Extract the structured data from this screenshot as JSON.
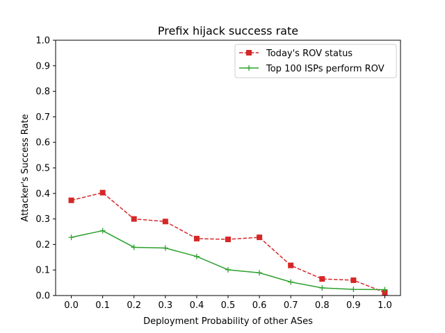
{
  "chart_data": {
    "type": "line",
    "title": "Prefix hijack success rate",
    "xlabel": "Deployment Probability of other ASes",
    "ylabel": "Attacker's Success Rate",
    "x": [
      0.0,
      0.1,
      0.2,
      0.3,
      0.4,
      0.5,
      0.6,
      0.7,
      0.8,
      0.9,
      1.0
    ],
    "xticks": [
      "0.0",
      "0.1",
      "0.2",
      "0.3",
      "0.4",
      "0.5",
      "0.6",
      "0.7",
      "0.8",
      "0.9",
      "1.0"
    ],
    "yticks": [
      "0.0",
      "0.1",
      "0.2",
      "0.3",
      "0.4",
      "0.5",
      "0.6",
      "0.7",
      "0.8",
      "0.9",
      "1.0"
    ],
    "xlim": [
      -0.05,
      1.05
    ],
    "ylim": [
      0.0,
      1.0
    ],
    "grid": false,
    "legend_position": "top-right",
    "series": [
      {
        "name": "Today's ROV status",
        "color": "#d62728",
        "line_style": "dashed",
        "marker": "square",
        "values": [
          0.373,
          0.403,
          0.3,
          0.29,
          0.223,
          0.22,
          0.228,
          0.118,
          0.065,
          0.06,
          0.012
        ]
      },
      {
        "name": "Top 100 ISPs perform ROV",
        "color": "#2ca02c",
        "line_style": "solid",
        "marker": "plus",
        "values": [
          0.228,
          0.254,
          0.189,
          0.186,
          0.153,
          0.101,
          0.089,
          0.053,
          0.03,
          0.024,
          0.023
        ]
      }
    ]
  }
}
